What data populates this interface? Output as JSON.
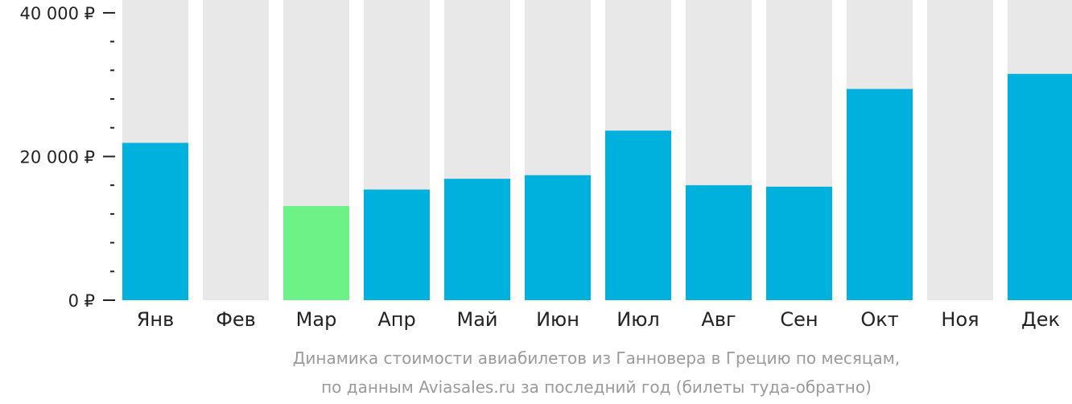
{
  "chart_data": {
    "type": "bar",
    "categories": [
      "Янв",
      "Фев",
      "Мар",
      "Апр",
      "Май",
      "Июн",
      "Июл",
      "Авг",
      "Сен",
      "Окт",
      "Ноя",
      "Дек"
    ],
    "values": [
      21900,
      null,
      13100,
      15400,
      16900,
      17400,
      23600,
      16000,
      15800,
      29400,
      null,
      31500
    ],
    "highlight_index": 2,
    "ylim": [
      0,
      41000
    ],
    "y_ticks": [
      {
        "value": 40000,
        "label": "40 000 ₽"
      },
      {
        "value": 20000,
        "label": "20 000 ₽"
      },
      {
        "value": 0,
        "label": "0 ₽"
      }
    ],
    "minor_tick_step": 4000,
    "caption_lines": [
      "Динамика стоимости авиабилетов из Ганновера в Грецию по месяцам,",
      "по данным Aviasales.ru за последний год (билеты туда-обратно)"
    ],
    "colors": {
      "bar": "#00b0dd",
      "highlight": "#6cf287",
      "background_bar": "#e8e8e8",
      "axis": "#222222",
      "caption": "#9a9a9a"
    },
    "grid": false,
    "legend": "none"
  }
}
